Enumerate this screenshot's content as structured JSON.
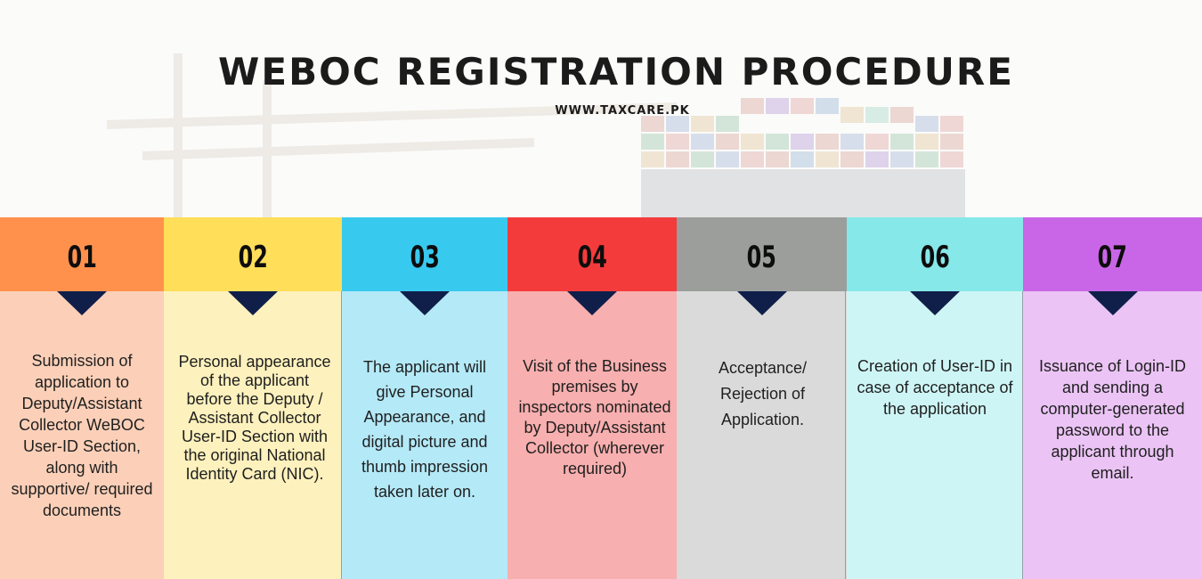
{
  "header": {
    "title": "WEBOC REGISTRATION PROCEDURE",
    "website": "WWW.TAXCARE.PK"
  },
  "steps": [
    {
      "number": "01",
      "text": "Submission of application to Deputy/Assistant Collector WeBOC User-ID Section, along with supportive/ required documents",
      "head_color": "#ff914d",
      "body_color": "#fcd0b8"
    },
    {
      "number": "02",
      "text": "Personal appearance of the applicant before the Deputy / Assistant Collector User-ID Section with the original National Identity Card (NIC).",
      "head_color": "#ffde59",
      "body_color": "#fdf1bd"
    },
    {
      "number": "03",
      "text": "The applicant will give Personal Appearance, and digital picture and thumb impression taken later on.",
      "head_color": "#38c9ef",
      "body_color": "#b4e9f7"
    },
    {
      "number": "04",
      "text": "Visit of the Business premises by inspectors nominated by Deputy/Assistant Collector (wherever required)",
      "head_color": "#f43b3b",
      "body_color": "#f8afaf"
    },
    {
      "number": "05",
      "text": "Acceptance/ Rejection of Application.",
      "head_color": "#9b9e9b",
      "body_color": "#d9dad9"
    },
    {
      "number": "06",
      "text": "Creation of User-ID in case of acceptance of the application",
      "head_color": "#86e8e8",
      "body_color": "#cef5f5"
    },
    {
      "number": "07",
      "text": "Issuance of Login-ID and sending a computer-generated password to the applicant through email.",
      "head_color": "#c966e7",
      "body_color": "#ebc4f5"
    }
  ],
  "colors": {
    "arrow": "#0f1f4a",
    "title": "#1b1b1b"
  }
}
